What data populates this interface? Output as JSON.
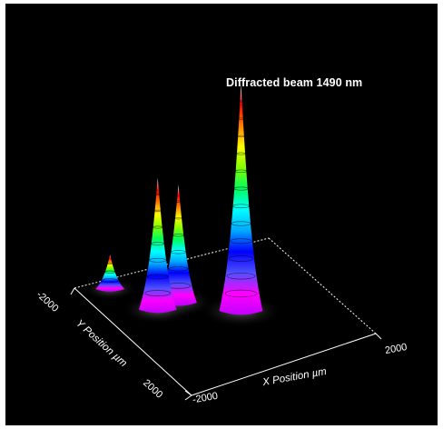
{
  "chart_data": {
    "type": "surface",
    "title": "Diffracted beam 1490 nm",
    "xlabel": "X Position µm",
    "ylabel": "Y Position µm",
    "xlim": [
      -2000,
      2000
    ],
    "ylim": [
      -2000,
      2000
    ],
    "x_ticks": [
      "-2000",
      "2000"
    ],
    "y_ticks": [
      "-2000",
      "2000"
    ],
    "grid": false,
    "peaks": [
      {
        "name": "",
        "x": -1450,
        "y": -1650,
        "relative_height": 0.15
      },
      {
        "name": "",
        "x": -1050,
        "y": -650,
        "relative_height": 0.58
      },
      {
        "name": "",
        "x": -600,
        "y": -650,
        "relative_height": 0.52
      },
      {
        "name": "",
        "x": 250,
        "y": 150,
        "relative_height": 1.0
      }
    ],
    "colormap": [
      "#c000ff",
      "#ff00ff",
      "#5050ff",
      "#0000ff",
      "#00a8ff",
      "#00ffff",
      "#00ff60",
      "#80ff00",
      "#ffff00",
      "#ff8000",
      "#ff0000",
      "#ffffff"
    ]
  }
}
